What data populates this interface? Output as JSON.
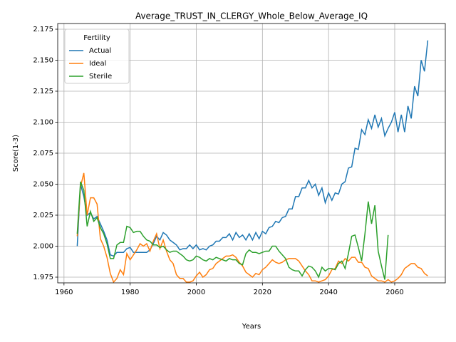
{
  "chart_data": {
    "type": "line",
    "title": "Average_TRUST_IN_CLERGY_Whole_Below_Average_IQ",
    "xlabel": "Years",
    "ylabel": "Score(1-3)",
    "legend_title": "Fertility",
    "legend": "upper left",
    "xlim": [
      1958.1,
      2075.3
    ],
    "ylim": [
      1.9704,
      2.1796
    ],
    "xticks": [
      1960,
      1980,
      2000,
      2020,
      2040,
      2060
    ],
    "yticks": [
      1.975,
      {
        "value": 2,
        "label": "2.000"
      },
      2.025,
      {
        "value": 2.05,
        "label": "2.050"
      },
      2.075,
      {
        "value": 2.1,
        "label": "2.100"
      },
      2.125,
      {
        "value": 2.15,
        "label": "2.150"
      },
      2.175
    ],
    "grid": true,
    "x": [
      1964,
      1965,
      1966,
      1967,
      1968,
      1969,
      1970,
      1971,
      1972,
      1973,
      1974,
      1975,
      1976,
      1977,
      1978,
      1979,
      1980,
      1981,
      1982,
      1983,
      1984,
      1985,
      1986,
      1987,
      1988,
      1989,
      1990,
      1991,
      1992,
      1993,
      1994,
      1995,
      1996,
      1997,
      1998,
      1999,
      2000,
      2001,
      2002,
      2003,
      2004,
      2005,
      2006,
      2007,
      2008,
      2009,
      2010,
      2011,
      2012,
      2013,
      2014,
      2015,
      2016,
      2017,
      2018,
      2019,
      2020,
      2021,
      2022,
      2023,
      2024,
      2025,
      2026,
      2027,
      2028,
      2029,
      2030,
      2031,
      2032,
      2033,
      2034,
      2035,
      2036,
      2037,
      2038,
      2039,
      2040,
      2041,
      2042,
      2043,
      2044,
      2045,
      2046,
      2047,
      2048,
      2049,
      2050,
      2051,
      2052,
      2053,
      2054,
      2055,
      2056,
      2057,
      2058,
      2059,
      2060,
      2061,
      2062,
      2063,
      2064,
      2065,
      2066,
      2067,
      2068,
      2069,
      2070
    ],
    "series": [
      {
        "name": "Actual",
        "color": "#1f77b4",
        "values": [
          2.0,
          2.05,
          2.04,
          2.025,
          2.027,
          2.022,
          2.024,
          2.018,
          2.012,
          2.005,
          1.993,
          1.992,
          1.995,
          1.995,
          1.995,
          1.998,
          1.999,
          1.995,
          1.995,
          1.995,
          1.995,
          1.995,
          1.997,
          2.002,
          2.008,
          2.005,
          2.011,
          2.009,
          2.005,
          2.003,
          2.001,
          1.997,
          1.998,
          1.998,
          2.001,
          1.998,
          2.001,
          1.997,
          1.998,
          1.997,
          2.0,
          2.001,
          2.004,
          2.004,
          2.007,
          2.007,
          2.01,
          2.005,
          2.011,
          2.007,
          2.009,
          2.005,
          2.01,
          2.005,
          2.011,
          2.006,
          2.012,
          2.01,
          2.015,
          2.016,
          2.02,
          2.019,
          2.023,
          2.024,
          2.03,
          2.03,
          2.04,
          2.04,
          2.047,
          2.047,
          2.053,
          2.047,
          2.05,
          2.041,
          2.047,
          2.035,
          2.043,
          2.037,
          2.043,
          2.042,
          2.05,
          2.052,
          2.063,
          2.064,
          2.079,
          2.078,
          2.094,
          2.09,
          2.102,
          2.095,
          2.106,
          2.096,
          2.103,
          2.089,
          2.095,
          2.1,
          2.108,
          2.092,
          2.106,
          2.092,
          2.113,
          2.103,
          2.129,
          2.121,
          2.15,
          2.141,
          2.166
        ]
      },
      {
        "name": "Ideal",
        "color": "#ff7f0e",
        "values": [
          2.008,
          2.048,
          2.059,
          2.025,
          2.039,
          2.039,
          2.034,
          2.006,
          2.0,
          1.991,
          1.978,
          1.971,
          1.974,
          1.981,
          1.977,
          1.994,
          1.989,
          1.993,
          1.997,
          2.002,
          2.0,
          2.002,
          1.996,
          2.004,
          2.01,
          1.998,
          2.005,
          1.996,
          1.989,
          1.986,
          1.977,
          1.974,
          1.974,
          1.971,
          1.971,
          1.972,
          1.976,
          1.979,
          1.975,
          1.977,
          1.981,
          1.982,
          1.986,
          1.988,
          1.99,
          1.992,
          1.992,
          1.993,
          1.991,
          1.987,
          1.984,
          1.979,
          1.977,
          1.975,
          1.978,
          1.977,
          1.981,
          1.983,
          1.986,
          1.989,
          1.987,
          1.986,
          1.987,
          1.989,
          1.99,
          1.99,
          1.99,
          1.988,
          1.984,
          1.98,
          1.977,
          1.972,
          1.972,
          1.971,
          1.972,
          1.973,
          1.976,
          1.981,
          1.982,
          1.988,
          1.986,
          1.99,
          1.988,
          1.991,
          1.991,
          1.987,
          1.987,
          1.983,
          1.982,
          1.976,
          1.974,
          1.972,
          1.972,
          1.971,
          1.973,
          1.971,
          1.972,
          1.974,
          1.977,
          1.982,
          1.984,
          1.986,
          1.986,
          1.983,
          1.982,
          1.978,
          1.976
        ]
      },
      {
        "name": "Sterile",
        "color": "#2ca02c",
        "values": [
          2.01,
          2.052,
          2.045,
          2.016,
          2.028,
          2.02,
          2.023,
          2.015,
          2.01,
          2.002,
          1.99,
          1.99,
          2.001,
          2.003,
          2.003,
          2.016,
          2.015,
          2.011,
          2.012,
          2.012,
          2.008,
          2.005,
          2.004,
          2.001,
          2.001,
          1.999,
          2.0,
          1.997,
          1.995,
          1.996,
          1.996,
          1.994,
          1.992,
          1.989,
          1.988,
          1.989,
          1.992,
          1.991,
          1.989,
          1.988,
          1.99,
          1.989,
          1.991,
          1.99,
          1.989,
          1.988,
          1.99,
          1.989,
          1.989,
          1.986,
          1.985,
          1.994,
          1.997,
          1.995,
          1.995,
          1.994,
          1.995,
          1.996,
          1.996,
          2.0,
          2.0,
          1.996,
          1.993,
          1.99,
          1.983,
          1.981,
          1.98,
          1.98,
          1.976,
          1.981,
          1.984,
          1.983,
          1.98,
          1.975,
          1.983,
          1.98,
          1.982,
          1.982,
          1.981,
          1.986,
          1.988,
          1.982,
          1.994,
          2.008,
          2.009,
          1.999,
          1.988,
          2.01,
          2.036,
          2.018,
          2.033,
          1.996,
          1.984,
          1.973,
          2.009,
          null,
          null,
          null,
          null,
          null,
          null,
          null,
          null,
          null,
          null,
          null,
          null
        ]
      }
    ]
  }
}
